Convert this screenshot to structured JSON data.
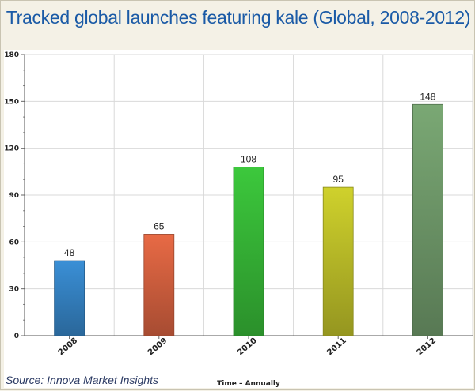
{
  "page": {
    "title": "Tracked global launches featuring kale (Global, 2008-2012)",
    "source": "Source: Innova Market Insights"
  },
  "colors": {
    "title": "#1a5aa6",
    "background": "#f4f1e6",
    "bars": [
      "#3a8fd6",
      "#e86a45",
      "#3cc83c",
      "#cfd12c",
      "#7aa874"
    ]
  },
  "chart_data": {
    "type": "bar",
    "title": "Tracked global launches featuring kale (Global, 2008-2012)",
    "xlabel": "Time – Annually",
    "ylabel": "",
    "categories": [
      "2008",
      "2009",
      "2010",
      "2011",
      "2012"
    ],
    "values": [
      48,
      65,
      108,
      95,
      148
    ],
    "data_labels": [
      "48",
      "65",
      "108",
      "95",
      "148"
    ],
    "ylim": [
      0,
      180
    ],
    "yticks": [
      0,
      30,
      60,
      90,
      120,
      150,
      180
    ],
    "grid": true,
    "legend": "none"
  }
}
